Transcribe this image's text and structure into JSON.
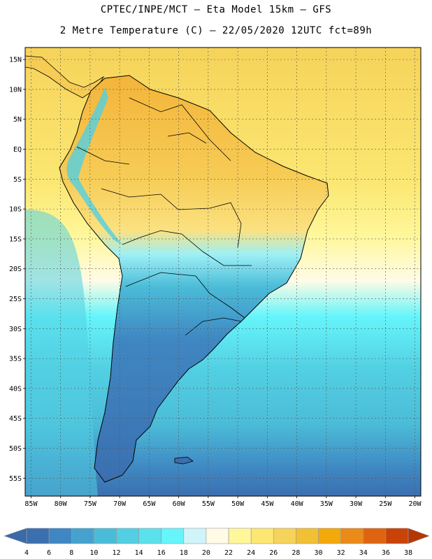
{
  "header": {
    "line1": "CPTEC/INPE/MCT –  Eta Model 15km – GFS",
    "line2": "2 Metre Temperature (C) – 22/05/2020 12UTC fct=89h"
  },
  "map": {
    "lat_labels": [
      "15N",
      "10N",
      "5N",
      "EQ",
      "5S",
      "10S",
      "15S",
      "20S",
      "25S",
      "30S",
      "35S",
      "40S",
      "45S",
      "50S",
      "55S"
    ],
    "lat_values": [
      15,
      10,
      5,
      0,
      -5,
      -10,
      -15,
      -20,
      -25,
      -30,
      -35,
      -40,
      -45,
      -50,
      -55
    ],
    "lon_labels": [
      "85W",
      "80W",
      "75W",
      "70W",
      "65W",
      "60W",
      "55W",
      "50W",
      "45W",
      "40W",
      "35W",
      "30W",
      "25W",
      "20W"
    ],
    "lon_values": [
      -85,
      -80,
      -75,
      -70,
      -65,
      -60,
      -55,
      -50,
      -45,
      -40,
      -35,
      -30,
      -25,
      -20
    ],
    "lat_range": [
      -58,
      17
    ],
    "lon_range": [
      -86,
      -19
    ],
    "grid": true
  },
  "colorbar": {
    "ticks": [
      "4",
      "6",
      "8",
      "10",
      "12",
      "14",
      "16",
      "18",
      "20",
      "22",
      "24",
      "26",
      "28",
      "30",
      "32",
      "34",
      "36",
      "38"
    ],
    "colors": [
      "#3b6fb0",
      "#3f87c2",
      "#45a2cf",
      "#4bbcd8",
      "#52cfe2",
      "#5ae1ec",
      "#65f5fb",
      "#cff5fb",
      "#fffbe6",
      "#fff79a",
      "#fbe772",
      "#f6d35a",
      "#f1c035",
      "#f4a90a",
      "#ea8a18",
      "#de6412",
      "#c94309",
      "#b93a06"
    ],
    "extend_low": "#3a6aa8",
    "extend_high": "#b33806"
  }
}
